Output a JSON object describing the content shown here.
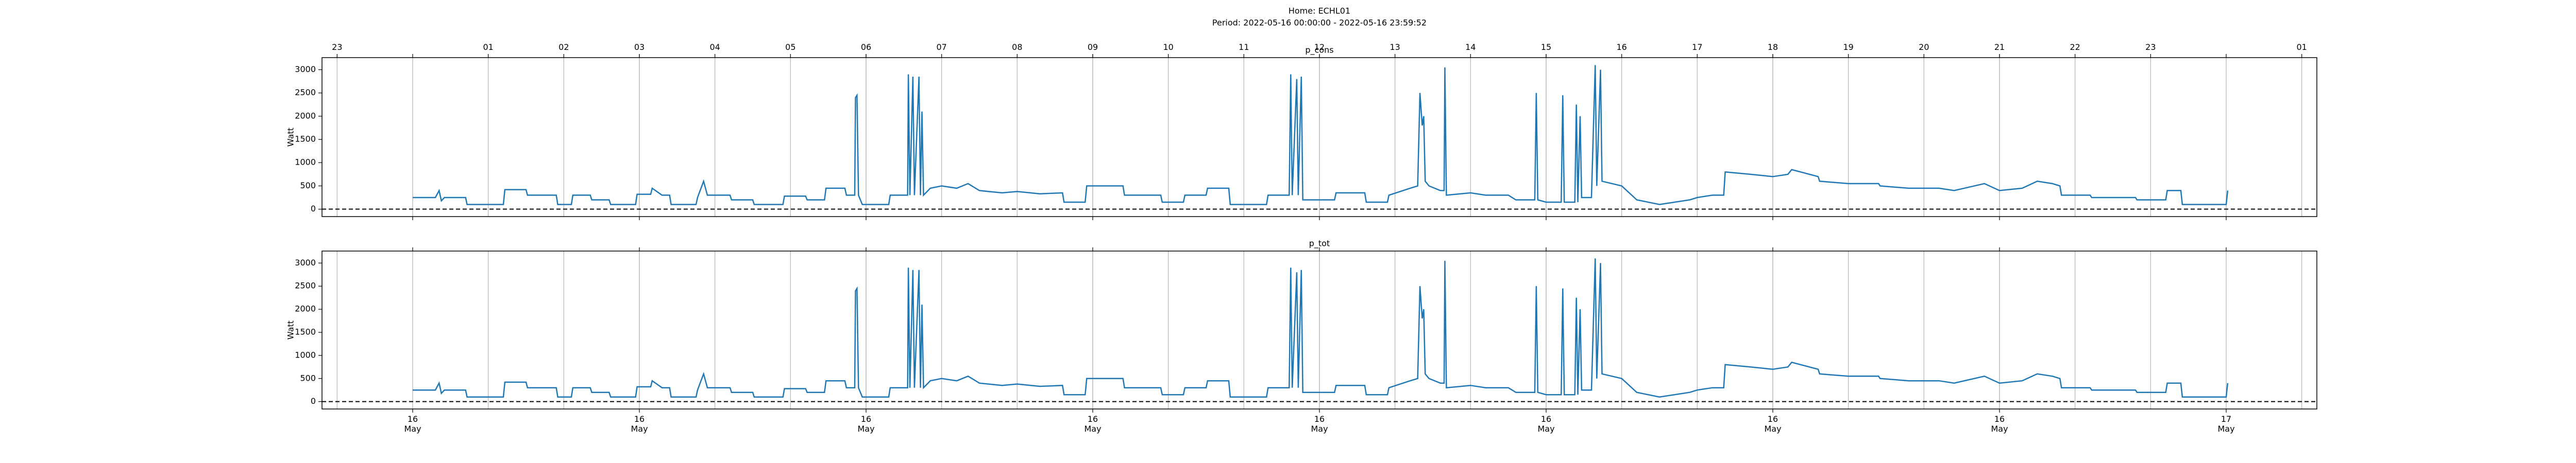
{
  "header": {
    "title": "Home: ECHL01",
    "subtitle": "Period: 2022-05-16 00:00:00 - 2022-05-16 23:59:52"
  },
  "xaxis": {
    "xlim": [
      -1.2,
      25.2
    ],
    "hour_ticks": [
      {
        "value": -1,
        "label": "23"
      },
      {
        "value": 1,
        "label": "01"
      },
      {
        "value": 2,
        "label": "02"
      },
      {
        "value": 3,
        "label": "03"
      },
      {
        "value": 4,
        "label": "04"
      },
      {
        "value": 5,
        "label": "05"
      },
      {
        "value": 6,
        "label": "06"
      },
      {
        "value": 7,
        "label": "07"
      },
      {
        "value": 8,
        "label": "08"
      },
      {
        "value": 9,
        "label": "09"
      },
      {
        "value": 10,
        "label": "10"
      },
      {
        "value": 11,
        "label": "11"
      },
      {
        "value": 12,
        "label": "12"
      },
      {
        "value": 13,
        "label": "13"
      },
      {
        "value": 14,
        "label": "14"
      },
      {
        "value": 15,
        "label": "15"
      },
      {
        "value": 16,
        "label": "16"
      },
      {
        "value": 17,
        "label": "17"
      },
      {
        "value": 18,
        "label": "18"
      },
      {
        "value": 19,
        "label": "19"
      },
      {
        "value": 20,
        "label": "20"
      },
      {
        "value": 21,
        "label": "21"
      },
      {
        "value": 22,
        "label": "22"
      },
      {
        "value": 23,
        "label": "23"
      },
      {
        "value": 25,
        "label": "01"
      }
    ],
    "day_ticks": [
      {
        "value": 0,
        "label": "16\nMay"
      },
      {
        "value": 3,
        "label": "16\nMay"
      },
      {
        "value": 6,
        "label": "16\nMay"
      },
      {
        "value": 9,
        "label": "16\nMay"
      },
      {
        "value": 12,
        "label": "16\nMay"
      },
      {
        "value": 15,
        "label": "16\nMay"
      },
      {
        "value": 18,
        "label": "16\nMay"
      },
      {
        "value": 21,
        "label": "16\nMay"
      },
      {
        "value": 24,
        "label": "17\nMay"
      }
    ]
  },
  "chart_data": [
    {
      "type": "line",
      "title": "p_cons",
      "ylabel": "Watt",
      "color": "#1f77b4",
      "ylim": [
        -160,
        3260
      ],
      "yticks": [
        0,
        500,
        1000,
        1500,
        2000,
        2500,
        3000
      ],
      "hline": 0,
      "x": [
        0,
        0.3,
        0.35,
        0.38,
        0.42,
        0.7,
        0.72,
        1.2,
        1.22,
        1.5,
        1.52,
        1.9,
        1.92,
        2.1,
        2.12,
        2.35,
        2.37,
        2.6,
        2.62,
        2.95,
        2.97,
        3.15,
        3.17,
        3.3,
        3.4,
        3.42,
        3.75,
        3.77,
        3.85,
        3.9,
        4.2,
        4.22,
        4.5,
        4.52,
        4.9,
        4.92,
        5.2,
        5.22,
        5.45,
        5.47,
        5.72,
        5.74,
        5.85,
        5.86,
        5.88,
        5.9,
        5.95,
        6.3,
        6.32,
        6.55,
        6.56,
        6.58,
        6.62,
        6.64,
        6.7,
        6.72,
        6.74,
        6.76,
        6.85,
        7.0,
        7.2,
        7.35,
        7.5,
        7.8,
        8.0,
        8.3,
        8.6,
        8.62,
        8.9,
        8.92,
        9.4,
        9.42,
        9.9,
        9.92,
        10.2,
        10.22,
        10.5,
        10.52,
        10.8,
        10.82,
        11.3,
        11.32,
        11.6,
        11.62,
        11.64,
        11.7,
        11.72,
        11.76,
        11.78,
        12.2,
        12.22,
        12.6,
        12.62,
        12.9,
        12.92,
        13.2,
        13.3,
        13.33,
        13.36,
        13.38,
        13.4,
        13.45,
        13.6,
        13.65,
        13.66,
        13.68,
        14.0,
        14.2,
        14.5,
        14.6,
        14.85,
        14.87,
        14.89,
        15.0,
        15.2,
        15.22,
        15.24,
        15.38,
        15.4,
        15.42,
        15.45,
        15.47,
        15.6,
        15.65,
        15.67,
        15.72,
        15.74,
        16.0,
        16.2,
        16.5,
        16.9,
        17.0,
        17.2,
        17.35,
        17.37,
        17.7,
        18.0,
        18.2,
        18.25,
        18.6,
        18.62,
        19.0,
        19.4,
        19.42,
        19.8,
        20.2,
        20.4,
        20.8,
        21.0,
        21.3,
        21.5,
        21.7,
        21.8,
        21.82,
        22.2,
        22.22,
        22.8,
        22.82,
        23.2,
        23.22,
        23.4,
        23.42,
        24.0,
        24.02
      ],
      "values": [
        250,
        250,
        400,
        180,
        250,
        250,
        100,
        100,
        420,
        420,
        300,
        300,
        100,
        100,
        300,
        300,
        200,
        200,
        100,
        100,
        320,
        320,
        450,
        300,
        300,
        100,
        100,
        250,
        600,
        300,
        300,
        200,
        200,
        100,
        100,
        280,
        280,
        200,
        200,
        450,
        450,
        300,
        300,
        2400,
        2450,
        300,
        100,
        100,
        300,
        300,
        2900,
        300,
        2850,
        300,
        2850,
        300,
        2100,
        300,
        450,
        500,
        450,
        550,
        400,
        350,
        380,
        330,
        350,
        150,
        150,
        500,
        500,
        300,
        300,
        150,
        150,
        300,
        300,
        450,
        450,
        100,
        100,
        300,
        300,
        2900,
        300,
        2800,
        300,
        2850,
        200,
        200,
        350,
        350,
        150,
        150,
        300,
        450,
        500,
        2500,
        1800,
        2000,
        600,
        500,
        400,
        400,
        3050,
        300,
        350,
        300,
        300,
        200,
        200,
        2500,
        200,
        150,
        150,
        2450,
        150,
        150,
        2250,
        150,
        2000,
        250,
        250,
        3100,
        500,
        3000,
        600,
        500,
        200,
        100,
        200,
        250,
        300,
        300,
        800,
        750,
        700,
        750,
        850,
        700,
        600,
        550,
        550,
        500,
        450,
        450,
        400,
        550,
        400,
        450,
        600,
        550,
        500,
        300,
        300,
        250,
        250,
        200,
        200,
        400,
        400,
        100,
        100,
        400
      ]
    },
    {
      "type": "line",
      "title": "p_tot",
      "ylabel": "Watt",
      "color": "#1f77b4",
      "ylim": [
        -160,
        3260
      ],
      "yticks": [
        0,
        500,
        1000,
        1500,
        2000,
        2500,
        3000
      ],
      "hline": 0,
      "x": [
        0,
        0.3,
        0.35,
        0.38,
        0.42,
        0.7,
        0.72,
        1.2,
        1.22,
        1.5,
        1.52,
        1.9,
        1.92,
        2.1,
        2.12,
        2.35,
        2.37,
        2.6,
        2.62,
        2.95,
        2.97,
        3.15,
        3.17,
        3.3,
        3.4,
        3.42,
        3.75,
        3.77,
        3.85,
        3.9,
        4.2,
        4.22,
        4.5,
        4.52,
        4.9,
        4.92,
        5.2,
        5.22,
        5.45,
        5.47,
        5.72,
        5.74,
        5.85,
        5.86,
        5.88,
        5.9,
        5.95,
        6.3,
        6.32,
        6.55,
        6.56,
        6.58,
        6.62,
        6.64,
        6.7,
        6.72,
        6.74,
        6.76,
        6.85,
        7.0,
        7.2,
        7.35,
        7.5,
        7.8,
        8.0,
        8.3,
        8.6,
        8.62,
        8.9,
        8.92,
        9.4,
        9.42,
        9.9,
        9.92,
        10.2,
        10.22,
        10.5,
        10.52,
        10.8,
        10.82,
        11.3,
        11.32,
        11.6,
        11.62,
        11.64,
        11.7,
        11.72,
        11.76,
        11.78,
        12.2,
        12.22,
        12.6,
        12.62,
        12.9,
        12.92,
        13.2,
        13.3,
        13.33,
        13.36,
        13.38,
        13.4,
        13.45,
        13.6,
        13.65,
        13.66,
        13.68,
        14.0,
        14.2,
        14.5,
        14.6,
        14.85,
        14.87,
        14.89,
        15.0,
        15.2,
        15.22,
        15.24,
        15.38,
        15.4,
        15.42,
        15.45,
        15.47,
        15.6,
        15.65,
        15.67,
        15.72,
        15.74,
        16.0,
        16.2,
        16.5,
        16.9,
        17.0,
        17.2,
        17.35,
        17.37,
        17.7,
        18.0,
        18.2,
        18.25,
        18.6,
        18.62,
        19.0,
        19.4,
        19.42,
        19.8,
        20.2,
        20.4,
        20.8,
        21.0,
        21.3,
        21.5,
        21.7,
        21.8,
        21.82,
        22.2,
        22.22,
        22.8,
        22.82,
        23.2,
        23.22,
        23.4,
        23.42,
        24.0,
        24.02
      ],
      "values": [
        250,
        250,
        400,
        180,
        250,
        250,
        100,
        100,
        420,
        420,
        300,
        300,
        100,
        100,
        300,
        300,
        200,
        200,
        100,
        100,
        320,
        320,
        450,
        300,
        300,
        100,
        100,
        250,
        600,
        300,
        300,
        200,
        200,
        100,
        100,
        280,
        280,
        200,
        200,
        450,
        450,
        300,
        300,
        2400,
        2450,
        300,
        100,
        100,
        300,
        300,
        2900,
        300,
        2850,
        300,
        2850,
        300,
        2100,
        300,
        450,
        500,
        450,
        550,
        400,
        350,
        380,
        330,
        350,
        150,
        150,
        500,
        500,
        300,
        300,
        150,
        150,
        300,
        300,
        450,
        450,
        100,
        100,
        300,
        300,
        2900,
        300,
        2800,
        300,
        2850,
        200,
        200,
        350,
        350,
        150,
        150,
        300,
        450,
        500,
        2500,
        1800,
        2000,
        600,
        500,
        400,
        400,
        3050,
        300,
        350,
        300,
        300,
        200,
        200,
        2500,
        200,
        150,
        150,
        2450,
        150,
        150,
        2250,
        150,
        2000,
        250,
        250,
        3100,
        500,
        3000,
        600,
        500,
        200,
        100,
        200,
        250,
        300,
        300,
        800,
        750,
        700,
        750,
        850,
        700,
        600,
        550,
        550,
        500,
        450,
        450,
        400,
        550,
        400,
        450,
        600,
        550,
        500,
        300,
        300,
        250,
        250,
        200,
        200,
        400,
        400,
        100,
        100,
        400
      ]
    }
  ]
}
